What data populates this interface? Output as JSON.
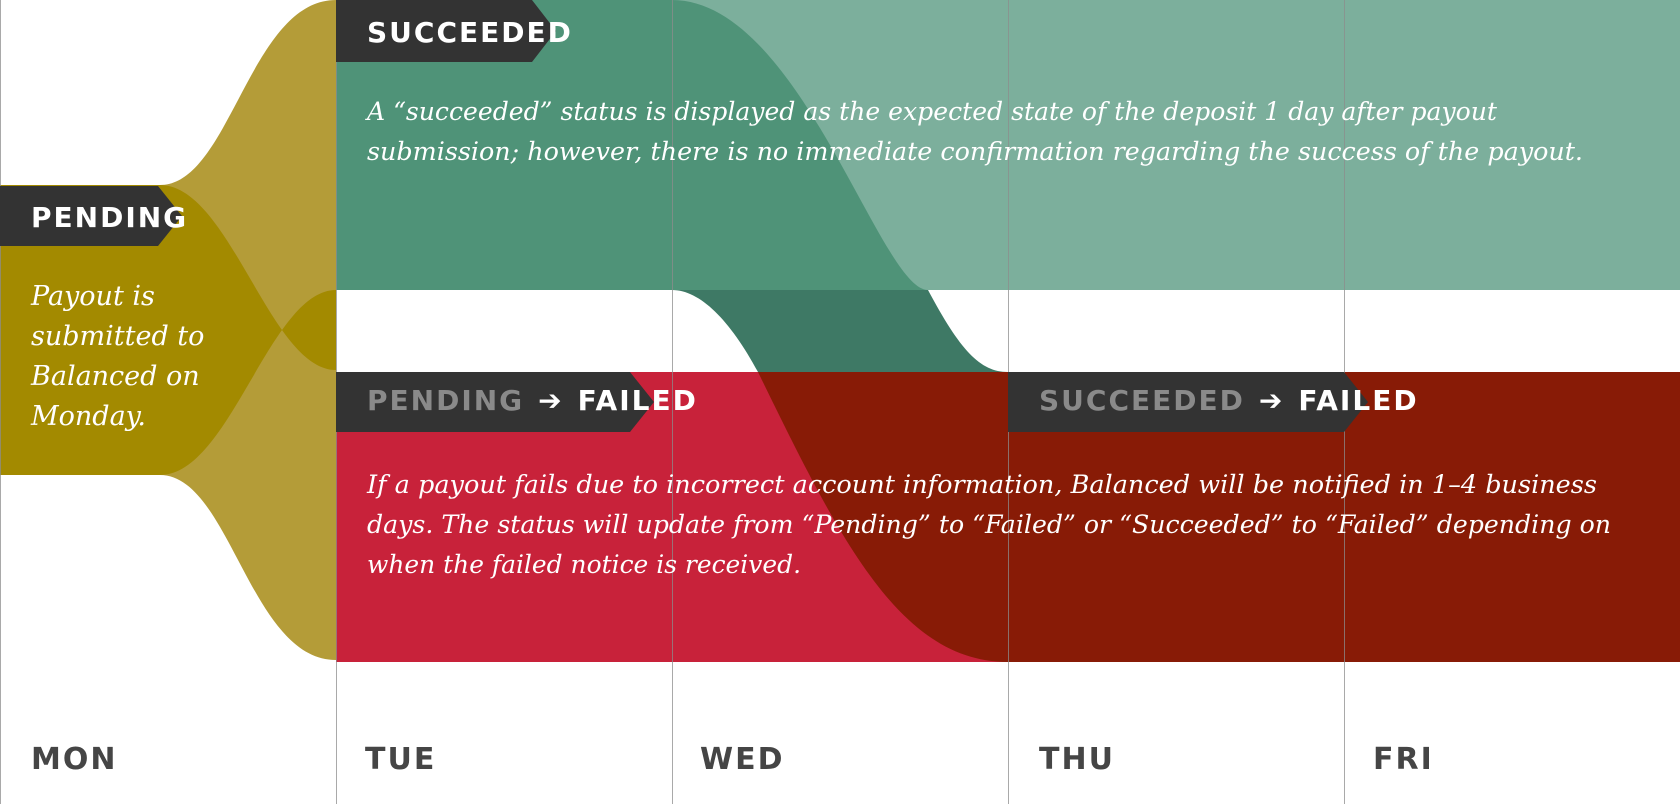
{
  "colors": {
    "pending": "#a38a00",
    "pending_flow": "#b49c38",
    "succeeded": "#4f9378",
    "succeeded_light": "#7caf9c",
    "succeeded_dark": "#3e7965",
    "failed": "#c8223a",
    "failed_dark": "#881b06",
    "tag_bg": "#333333",
    "tag_text": "#ffffff",
    "tag_muted": "#8a8a8a",
    "day_text": "#454545",
    "gridline": "#8c8c8c"
  },
  "states": {
    "pending": {
      "label": "PENDING",
      "description": [
        "Payout is",
        "submitted to",
        "Balanced on",
        "Monday."
      ]
    },
    "succeeded": {
      "label": "SUCCEEDED",
      "description": [
        "A “succeeded” status is displayed as the expected state of the deposit 1 day after payout",
        "submission; however, there is no immediate confirmation regarding the success of the payout."
      ]
    },
    "pending_to_failed": {
      "from": "PENDING",
      "arrow": "➔",
      "to": "FAILED",
      "description": [
        "If a payout fails due to incorrect account information, Balanced will be notified in 1–4 business",
        "days. The status will update from “Pending” to “Failed” or “Succeeded” to “Failed” depending on",
        "when the failed notice is received."
      ]
    },
    "succeeded_to_failed": {
      "from": "SUCCEEDED",
      "arrow": "➔",
      "to": "FAILED"
    }
  },
  "days": [
    "MON",
    "TUE",
    "WED",
    "THU",
    "FRI"
  ]
}
